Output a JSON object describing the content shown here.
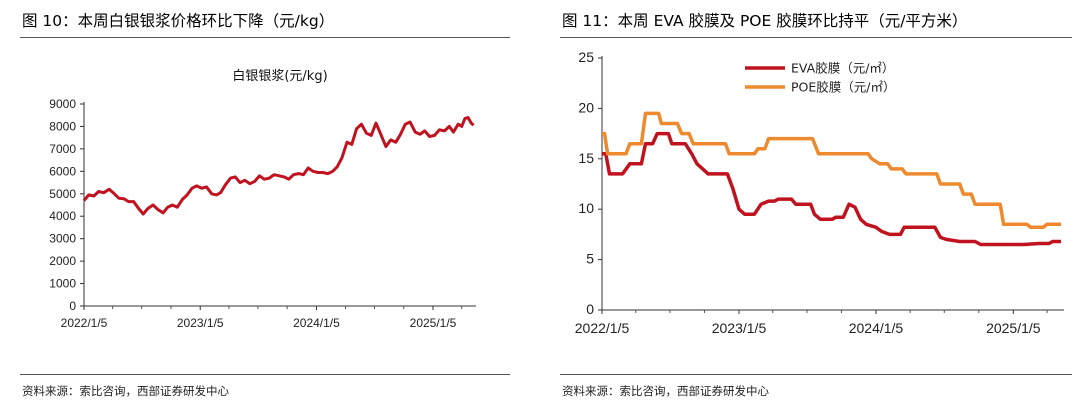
{
  "left": {
    "figure_title": "图 10：本周白银银浆价格环比下降（元/kg）",
    "source": "资料来源：索比咨询，西部证券研发中心"
  },
  "right": {
    "figure_title": "图 11：本周 EVA 胶膜及 POE 胶膜环比持平（元/平方米）",
    "source": "资料来源：索比咨询，西部证券研发中心"
  },
  "colors": {
    "silver": "#c1121f",
    "eva": "#c1121f",
    "poe": "#ee8a2d"
  },
  "chart_data": [
    {
      "type": "line",
      "title": "白银银浆(元/kg)",
      "xlabel": "",
      "ylabel": "",
      "ylim": [
        0,
        9000
      ],
      "yticks": [
        "0",
        "1000",
        "2000",
        "3000",
        "4000",
        "5000",
        "6000",
        "7000",
        "8000",
        "9000"
      ],
      "xticks": [
        "2022/1/5",
        "2023/1/5",
        "2024/1/5",
        "2025/1/5"
      ],
      "grid": false,
      "series": [
        {
          "name": "白银银浆",
          "color": "#c1121f",
          "points": [
            [
              "2022-01-05",
              4700
            ],
            [
              "2022-01-20",
              4950
            ],
            [
              "2022-02-05",
              4900
            ],
            [
              "2022-02-20",
              5100
            ],
            [
              "2022-03-08",
              5050
            ],
            [
              "2022-03-25",
              5200
            ],
            [
              "2022-04-10",
              5000
            ],
            [
              "2022-04-25",
              4800
            ],
            [
              "2022-05-10",
              4780
            ],
            [
              "2022-05-25",
              4650
            ],
            [
              "2022-06-10",
              4650
            ],
            [
              "2022-06-25",
              4350
            ],
            [
              "2022-07-10",
              4100
            ],
            [
              "2022-07-25",
              4350
            ],
            [
              "2022-08-10",
              4500
            ],
            [
              "2022-08-25",
              4300
            ],
            [
              "2022-09-10",
              4150
            ],
            [
              "2022-09-25",
              4400
            ],
            [
              "2022-10-10",
              4500
            ],
            [
              "2022-10-25",
              4400
            ],
            [
              "2022-11-10",
              4750
            ],
            [
              "2022-11-25",
              4950
            ],
            [
              "2022-12-10",
              5250
            ],
            [
              "2022-12-25",
              5350
            ],
            [
              "2023-01-10",
              5250
            ],
            [
              "2023-01-25",
              5300
            ],
            [
              "2023-02-10",
              5000
            ],
            [
              "2023-02-25",
              4950
            ],
            [
              "2023-03-10",
              5050
            ],
            [
              "2023-03-25",
              5400
            ],
            [
              "2023-04-10",
              5700
            ],
            [
              "2023-04-25",
              5750
            ],
            [
              "2023-05-10",
              5500
            ],
            [
              "2023-05-25",
              5600
            ],
            [
              "2023-06-10",
              5450
            ],
            [
              "2023-06-25",
              5550
            ],
            [
              "2023-07-10",
              5800
            ],
            [
              "2023-07-25",
              5650
            ],
            [
              "2023-08-10",
              5700
            ],
            [
              "2023-08-25",
              5850
            ],
            [
              "2023-09-10",
              5800
            ],
            [
              "2023-09-25",
              5750
            ],
            [
              "2023-10-10",
              5650
            ],
            [
              "2023-10-25",
              5850
            ],
            [
              "2023-11-10",
              5900
            ],
            [
              "2023-11-25",
              5850
            ],
            [
              "2023-12-10",
              6150
            ],
            [
              "2023-12-25",
              6000
            ],
            [
              "2024-01-10",
              5950
            ],
            [
              "2024-01-25",
              5950
            ],
            [
              "2024-02-10",
              5900
            ],
            [
              "2024-02-25",
              6000
            ],
            [
              "2024-03-10",
              6200
            ],
            [
              "2024-03-25",
              6600
            ],
            [
              "2024-04-10",
              7300
            ],
            [
              "2024-04-25",
              7200
            ],
            [
              "2024-05-10",
              7900
            ],
            [
              "2024-05-25",
              8100
            ],
            [
              "2024-06-10",
              7700
            ],
            [
              "2024-06-25",
              7600
            ],
            [
              "2024-07-10",
              8150
            ],
            [
              "2024-07-25",
              7650
            ],
            [
              "2024-08-10",
              7100
            ],
            [
              "2024-08-25",
              7400
            ],
            [
              "2024-09-10",
              7300
            ],
            [
              "2024-09-25",
              7650
            ],
            [
              "2024-10-10",
              8100
            ],
            [
              "2024-10-25",
              8200
            ],
            [
              "2024-11-10",
              7750
            ],
            [
              "2024-11-25",
              7650
            ],
            [
              "2024-12-10",
              7800
            ],
            [
              "2024-12-25",
              7550
            ],
            [
              "2025-01-10",
              7600
            ],
            [
              "2025-01-25",
              7850
            ],
            [
              "2025-02-10",
              7800
            ],
            [
              "2025-02-25",
              8000
            ],
            [
              "2025-03-10",
              7750
            ],
            [
              "2025-03-25",
              8100
            ],
            [
              "2025-04-05",
              8000
            ],
            [
              "2025-04-15",
              8350
            ],
            [
              "2025-04-25",
              8400
            ],
            [
              "2025-05-05",
              8150
            ],
            [
              "2025-05-12",
              8050
            ]
          ]
        }
      ]
    },
    {
      "type": "line",
      "title": "",
      "xlabel": "",
      "ylabel": "",
      "ylim": [
        0,
        25
      ],
      "yticks": [
        "0",
        "5",
        "10",
        "15",
        "20",
        "25"
      ],
      "xticks": [
        "2022/1/5",
        "2023/1/5",
        "2024/1/5",
        "2025/1/5"
      ],
      "grid": false,
      "legend_position": "top-center",
      "series": [
        {
          "name": "EVA胶膜（元/㎡）",
          "color": "#c1121f",
          "points": [
            [
              "2022-01-05",
              15.5
            ],
            [
              "2022-01-15",
              15.5
            ],
            [
              "2022-01-25",
              13.5
            ],
            [
              "2022-03-01",
              13.5
            ],
            [
              "2022-03-20",
              14.5
            ],
            [
              "2022-04-20",
              14.5
            ],
            [
              "2022-05-01",
              16.5
            ],
            [
              "2022-05-20",
              16.5
            ],
            [
              "2022-06-01",
              17.5
            ],
            [
              "2022-07-01",
              17.5
            ],
            [
              "2022-07-10",
              16.5
            ],
            [
              "2022-08-15",
              16.5
            ],
            [
              "2022-09-01",
              15.5
            ],
            [
              "2022-09-15",
              14.5
            ],
            [
              "2022-10-15",
              13.5
            ],
            [
              "2022-12-05",
              13.5
            ],
            [
              "2022-12-20",
              12.0
            ],
            [
              "2023-01-05",
              10.0
            ],
            [
              "2023-01-20",
              9.5
            ],
            [
              "2023-02-15",
              9.5
            ],
            [
              "2023-03-05",
              10.5
            ],
            [
              "2023-03-25",
              10.8
            ],
            [
              "2023-04-10",
              10.8
            ],
            [
              "2023-04-20",
              11.0
            ],
            [
              "2023-05-25",
              11.0
            ],
            [
              "2023-06-05",
              10.5
            ],
            [
              "2023-07-15",
              10.5
            ],
            [
              "2023-07-25",
              9.5
            ],
            [
              "2023-08-10",
              9.0
            ],
            [
              "2023-09-10",
              9.0
            ],
            [
              "2023-09-20",
              9.2
            ],
            [
              "2023-10-10",
              9.2
            ],
            [
              "2023-10-25",
              10.5
            ],
            [
              "2023-11-10",
              10.2
            ],
            [
              "2023-11-25",
              9.0
            ],
            [
              "2023-12-10",
              8.5
            ],
            [
              "2024-01-05",
              8.2
            ],
            [
              "2024-01-20",
              7.8
            ],
            [
              "2024-02-10",
              7.5
            ],
            [
              "2024-03-10",
              7.5
            ],
            [
              "2024-03-20",
              8.2
            ],
            [
              "2024-06-10",
              8.2
            ],
            [
              "2024-06-25",
              7.2
            ],
            [
              "2024-07-10",
              7.0
            ],
            [
              "2024-08-15",
              6.8
            ],
            [
              "2024-09-25",
              6.8
            ],
            [
              "2024-10-10",
              6.5
            ],
            [
              "2024-12-01",
              6.5
            ],
            [
              "2025-02-01",
              6.5
            ],
            [
              "2025-03-15",
              6.6
            ],
            [
              "2025-04-10",
              6.6
            ],
            [
              "2025-04-20",
              6.8
            ],
            [
              "2025-05-12",
              6.8
            ]
          ]
        },
        {
          "name": "POE胶膜（元/㎡）",
          "color": "#ee8a2d",
          "points": [
            [
              "2022-01-05",
              17.5
            ],
            [
              "2022-01-12",
              17.5
            ],
            [
              "2022-01-20",
              15.5
            ],
            [
              "2022-03-10",
              15.5
            ],
            [
              "2022-03-20",
              16.5
            ],
            [
              "2022-04-20",
              16.5
            ],
            [
              "2022-05-01",
              19.5
            ],
            [
              "2022-06-05",
              19.5
            ],
            [
              "2022-06-12",
              18.5
            ],
            [
              "2022-07-25",
              18.5
            ],
            [
              "2022-08-05",
              17.5
            ],
            [
              "2022-08-25",
              17.5
            ],
            [
              "2022-09-05",
              16.5
            ],
            [
              "2022-11-30",
              16.5
            ],
            [
              "2022-12-10",
              15.5
            ],
            [
              "2023-02-15",
              15.5
            ],
            [
              "2023-02-25",
              16.0
            ],
            [
              "2023-03-15",
              16.0
            ],
            [
              "2023-03-25",
              17.0
            ],
            [
              "2023-07-20",
              17.0
            ],
            [
              "2023-08-05",
              15.5
            ],
            [
              "2023-09-15",
              15.5
            ],
            [
              "2023-09-25",
              15.5
            ],
            [
              "2023-12-15",
              15.5
            ],
            [
              "2023-12-25",
              15.0
            ],
            [
              "2024-01-15",
              14.5
            ],
            [
              "2024-02-05",
              14.5
            ],
            [
              "2024-02-15",
              14.0
            ],
            [
              "2024-03-15",
              14.0
            ],
            [
              "2024-03-25",
              13.5
            ],
            [
              "2024-06-15",
              13.5
            ],
            [
              "2024-06-25",
              12.5
            ],
            [
              "2024-08-15",
              12.5
            ],
            [
              "2024-08-25",
              11.5
            ],
            [
              "2024-09-15",
              11.5
            ],
            [
              "2024-09-25",
              10.5
            ],
            [
              "2024-12-01",
              10.5
            ],
            [
              "2024-12-10",
              8.5
            ],
            [
              "2025-02-10",
              8.5
            ],
            [
              "2025-02-20",
              8.2
            ],
            [
              "2025-03-25",
              8.2
            ],
            [
              "2025-04-05",
              8.5
            ],
            [
              "2025-05-12",
              8.5
            ]
          ]
        }
      ]
    }
  ]
}
